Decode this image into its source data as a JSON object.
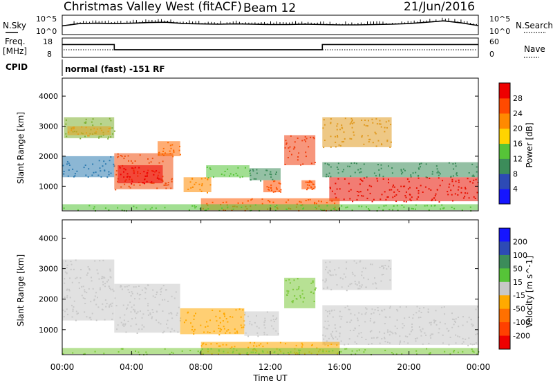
{
  "header": {
    "station": "Christmas Valley West (fitACF)",
    "beam": "Beam 12",
    "date": "21/Jun/2016"
  },
  "left_labels": {
    "nsky": "N.Sky",
    "freq_line1": "Freq.",
    "freq_line2": "[MHz]",
    "cpid": "CPID"
  },
  "right_labels": {
    "nsearch": "N.Search",
    "nave": "Nave"
  },
  "cpid_value": "normal (fast) -151 RF",
  "noise_axis": {
    "left_top": "10^5",
    "left_bottom": "10^0",
    "right_top": "10^5",
    "right_bottom": "10^0"
  },
  "freq_axis": {
    "left_top": "18",
    "left_bottom": "8",
    "right_top": "60",
    "right_bottom": "0"
  },
  "chart_data": [
    {
      "type": "line",
      "name": "noise",
      "x_range_hours": [
        0,
        24
      ],
      "note_series": "N.Sky solid, N.Search dotted",
      "ylim_log10": [
        0,
        5
      ],
      "x": [
        0,
        1,
        2,
        3,
        4,
        5,
        6,
        7,
        8,
        9,
        10,
        11,
        12,
        13,
        14,
        15,
        16,
        17,
        18,
        19,
        20,
        21,
        22,
        23,
        24
      ],
      "values": [
        2.2,
        2.9,
        3.0,
        2.9,
        3.0,
        3.2,
        3.3,
        2.9,
        2.8,
        2.7,
        2.8,
        2.7,
        2.6,
        2.6,
        2.7,
        2.6,
        2.5,
        2.5,
        2.6,
        2.7,
        2.9,
        3.3,
        3.7,
        3.1,
        2.3
      ]
    },
    {
      "type": "line",
      "name": "frequency",
      "ylim": [
        8,
        18
      ],
      "x": [
        0,
        3.0,
        3.0,
        15.0,
        15.0,
        24
      ],
      "values": [
        14.9,
        14.9,
        11.8,
        11.8,
        14.9,
        14.9
      ]
    },
    {
      "type": "heatmap",
      "name": "power",
      "ylabel": "Slant Range [km]",
      "yticks": [
        1000,
        2000,
        3000,
        4000
      ],
      "ylim": [
        180,
        4600
      ],
      "colorbar_label": "Power [dB]",
      "colorbar_ticks": [
        4,
        8,
        12,
        16,
        20,
        24,
        28
      ],
      "colorbar_colors": [
        "#1515ff",
        "#2d4ab5",
        "#3c8c5a",
        "#56c438",
        "#ffd400",
        "#ff8a00",
        "#ff4a00",
        "#ee0000"
      ],
      "regions": [
        {
          "t": [
            0.1,
            3.0
          ],
          "r": [
            2600,
            3300
          ],
          "level": 3,
          "color": "#7fb032"
        },
        {
          "t": [
            0.3,
            2.8
          ],
          "r": [
            2700,
            3000
          ],
          "level": 5,
          "color": "#e0a020"
        },
        {
          "t": [
            0.0,
            3.0
          ],
          "r": [
            1300,
            2000
          ],
          "level": 2,
          "color": "#2d7bb0"
        },
        {
          "t": [
            3.0,
            6.4
          ],
          "r": [
            900,
            2100
          ],
          "level": 6,
          "color": "#f05010"
        },
        {
          "t": [
            3.2,
            5.8
          ],
          "r": [
            1100,
            1700
          ],
          "level": 7,
          "color": "#ee0000"
        },
        {
          "t": [
            5.5,
            6.8
          ],
          "r": [
            2000,
            2500
          ],
          "level": 6,
          "color": "#ff6a00"
        },
        {
          "t": [
            7.0,
            8.6
          ],
          "r": [
            800,
            1300
          ],
          "level": 5,
          "color": "#ff8a00"
        },
        {
          "t": [
            8.3,
            10.8
          ],
          "r": [
            1300,
            1700
          ],
          "level": 4,
          "color": "#56c438"
        },
        {
          "t": [
            10.8,
            12.6
          ],
          "r": [
            1200,
            1600
          ],
          "level": 3,
          "color": "#3c8c5a"
        },
        {
          "t": [
            11.6,
            12.6
          ],
          "r": [
            800,
            1200
          ],
          "level": 6,
          "color": "#ff5000"
        },
        {
          "t": [
            12.8,
            14.6
          ],
          "r": [
            1700,
            2700
          ],
          "level": 6,
          "color": "#f04010"
        },
        {
          "t": [
            13.8,
            14.6
          ],
          "r": [
            900,
            1200
          ],
          "level": 6,
          "color": "#ff5000"
        },
        {
          "t": [
            15.0,
            24.0
          ],
          "r": [
            1300,
            1800
          ],
          "level": 3,
          "color": "#3c8c5a"
        },
        {
          "t": [
            15.4,
            24.0
          ],
          "r": [
            500,
            1300
          ],
          "level": 7,
          "color": "#e81000"
        },
        {
          "t": [
            15.0,
            19.0
          ],
          "r": [
            2300,
            3300
          ],
          "level": 4,
          "color": "#e09a20"
        },
        {
          "t": [
            8.0,
            16.0
          ],
          "r": [
            200,
            600
          ],
          "level": 6,
          "color": "#ff5a00"
        },
        {
          "t": [
            0.0,
            24.0
          ],
          "r": [
            200,
            400
          ],
          "level": 3,
          "color": "#56c438"
        }
      ]
    },
    {
      "type": "heatmap",
      "name": "velocity",
      "ylabel": "Slant Range [km]",
      "yticks": [
        1000,
        2000,
        3000,
        4000
      ],
      "ylim": [
        180,
        4600
      ],
      "xlabel": "Time UT",
      "xticks": [
        "00:00",
        "04:00",
        "08:00",
        "12:00",
        "16:00",
        "20:00",
        "00:00"
      ],
      "colorbar_label": "Velocity [m s^-1]",
      "colorbar_ticks": [
        200,
        100,
        50,
        15,
        -15,
        -50,
        -100,
        -200
      ],
      "colorbar_colors": [
        "#1515ff",
        "#2d4ab5",
        "#3c8c5a",
        "#56c438",
        "#c8c8c8",
        "#ffaa00",
        "#ff7000",
        "#ff4000",
        "#ee0000"
      ],
      "regions": [
        {
          "t": [
            0.0,
            3.0
          ],
          "r": [
            1300,
            3300
          ],
          "level": 4,
          "color": "#c8c8c8"
        },
        {
          "t": [
            3.0,
            6.8
          ],
          "r": [
            900,
            2500
          ],
          "level": 4,
          "color": "#c8c8c8"
        },
        {
          "t": [
            6.8,
            10.5
          ],
          "r": [
            850,
            1700
          ],
          "level": 5,
          "color": "#ffa800"
        },
        {
          "t": [
            10.5,
            12.5
          ],
          "r": [
            800,
            1600
          ],
          "level": 4,
          "color": "#c8c8c8"
        },
        {
          "t": [
            12.8,
            14.6
          ],
          "r": [
            1700,
            2700
          ],
          "level": 3,
          "color": "#7cc83c"
        },
        {
          "t": [
            15.0,
            24.0
          ],
          "r": [
            500,
            1800
          ],
          "level": 4,
          "color": "#c8c8c8"
        },
        {
          "t": [
            15.0,
            19.0
          ],
          "r": [
            2300,
            3300
          ],
          "level": 4,
          "color": "#c8c8c8"
        },
        {
          "t": [
            8.0,
            16.0
          ],
          "r": [
            200,
            600
          ],
          "level": 5,
          "color": "#ffa800"
        },
        {
          "t": [
            0.0,
            24.0
          ],
          "r": [
            200,
            400
          ],
          "level": 3,
          "color": "#7cc83c"
        }
      ]
    }
  ]
}
